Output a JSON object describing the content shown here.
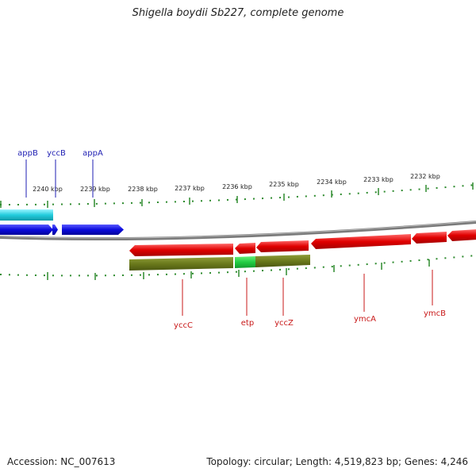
{
  "page": {
    "title": "Shigella boydii Sb227, complete genome",
    "accession": "Accession: NC_007613",
    "summary": "Topology: circular; Length: 4,519,823 bp; Genes: 4,246"
  },
  "colors": {
    "backbone": "#7a7a7a",
    "tick": "#2e8b2e",
    "forward_cds": "#0b0bdd",
    "forward_rna": "#22ccdd",
    "reverse_cds": "#e00000",
    "reverse_gene_bar": "#6b7a1c",
    "reverse_gene_highlight": "#22cc44",
    "forward_label": "#1f1fb3",
    "reverse_label": "#c81818",
    "scale_label": "#222222"
  },
  "scale_labels": [
    "2240 kbp",
    "2239 kbp",
    "2238 kbp",
    "2237 kbp",
    "2236 kbp",
    "2235 kbp",
    "2234 kbp",
    "2233 kbp",
    "2232 kbp"
  ],
  "forward_gene_labels": [
    "appB",
    "yccB",
    "appA"
  ],
  "reverse_gene_labels": [
    "yccC",
    "etp",
    "yccZ",
    "ymcA",
    "ymcB"
  ]
}
